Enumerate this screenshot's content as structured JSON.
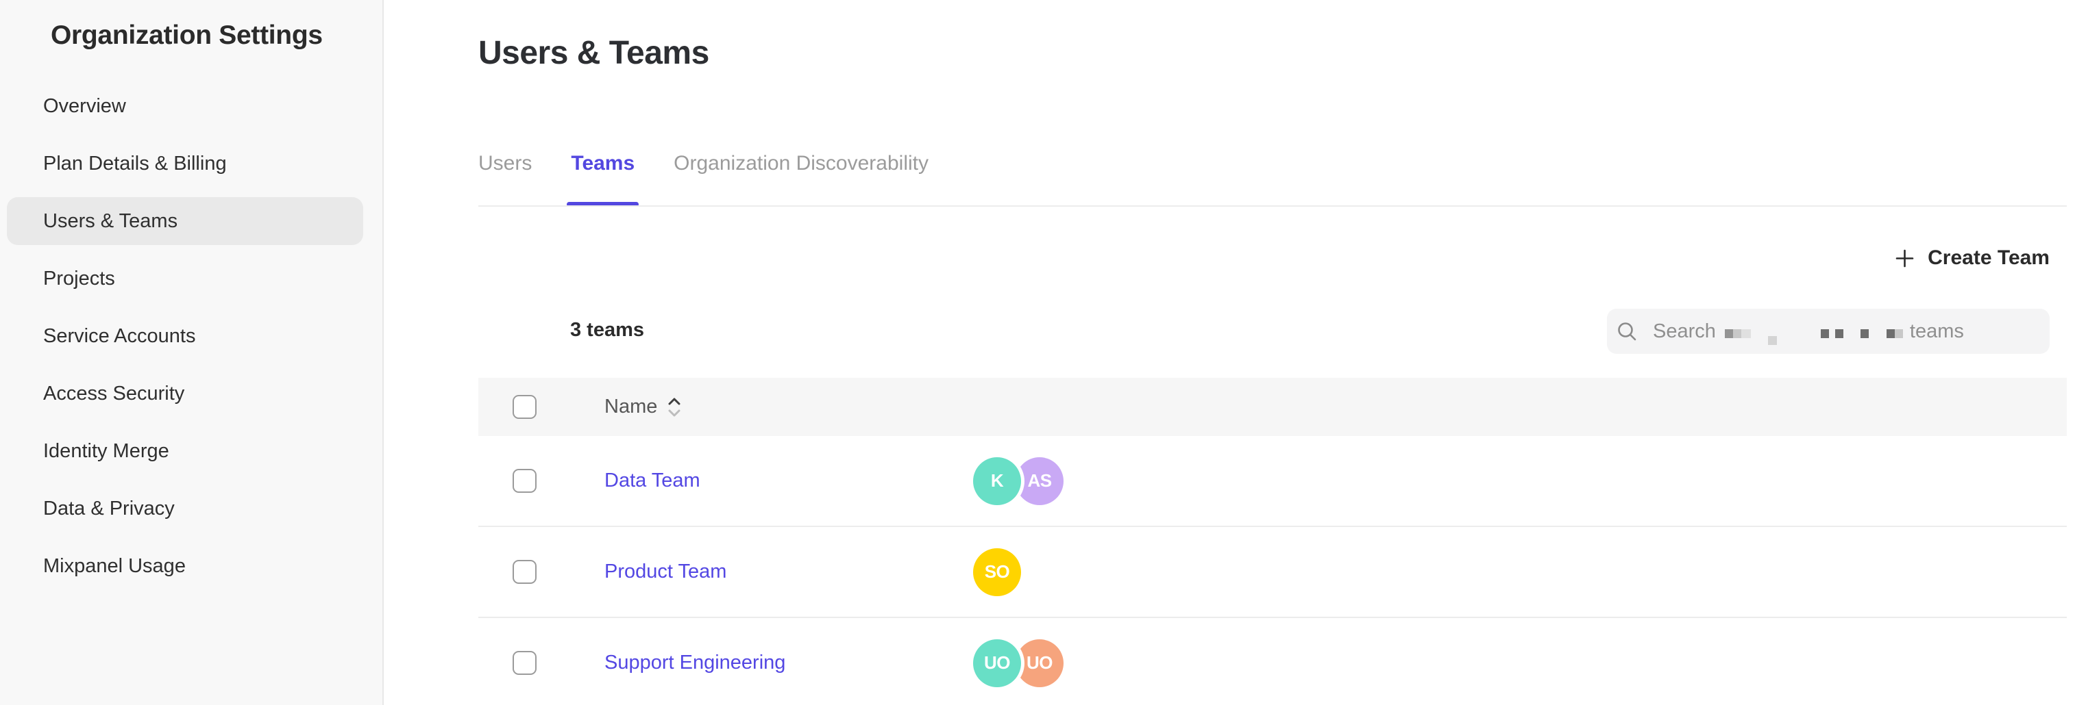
{
  "sidebar": {
    "title": "Organization Settings",
    "items": [
      {
        "label": "Overview",
        "selected": false
      },
      {
        "label": "Plan Details & Billing",
        "selected": false
      },
      {
        "label": "Users & Teams",
        "selected": true
      },
      {
        "label": "Projects",
        "selected": false
      },
      {
        "label": "Service Accounts",
        "selected": false
      },
      {
        "label": "Access Security",
        "selected": false
      },
      {
        "label": "Identity Merge",
        "selected": false
      },
      {
        "label": "Data & Privacy",
        "selected": false
      },
      {
        "label": "Mixpanel Usage",
        "selected": false
      }
    ]
  },
  "main": {
    "title": "Users & Teams",
    "tabs": [
      {
        "label": "Users",
        "active": false
      },
      {
        "label": "Teams",
        "active": true
      },
      {
        "label": "Organization Discoverability",
        "active": false
      }
    ],
    "create_team": {
      "label": "Create Team",
      "icon": "plus-icon"
    },
    "teams_count": "3 teams",
    "search": {
      "placeholder_prefix": "Search",
      "placeholder_suffix": "teams",
      "icon": "magnifier-icon",
      "blocks": [
        {
          "t": "mdark",
          "ml": 13
        },
        {
          "t": "light",
          "ml": 0
        },
        {
          "t": "xlight",
          "ml": 0
        },
        {
          "t": "sub",
          "ml": 25
        },
        {
          "t": "dark",
          "ml": 64
        },
        {
          "t": "dark",
          "ml": 9
        },
        {
          "t": "dark",
          "ml": 25
        },
        {
          "t": "dark",
          "ml": 26
        },
        {
          "t": "light",
          "ml": 0
        }
      ]
    },
    "table": {
      "header": {
        "name_label": "Name"
      },
      "rows": [
        {
          "name": "Data Team",
          "avatars": [
            {
              "initials": "K",
              "color": "#68DFC6"
            },
            {
              "initials": "AS",
              "color": "#C9A9F5"
            }
          ]
        },
        {
          "name": "Product Team",
          "avatars": [
            {
              "initials": "SO",
              "color": "#FFD400"
            }
          ]
        },
        {
          "name": "Support Engineering",
          "avatars": [
            {
              "initials": "UO",
              "color": "#68DFC6"
            },
            {
              "initials": "UO",
              "color": "#F6A47D"
            }
          ]
        }
      ]
    }
  },
  "colors": {
    "accent": "#5347E0",
    "link": "#5347E3",
    "sidebar_bg": "#F8F8F8",
    "selected_pill": "#E9E9E9",
    "header_row_bg": "#F6F6F6"
  }
}
